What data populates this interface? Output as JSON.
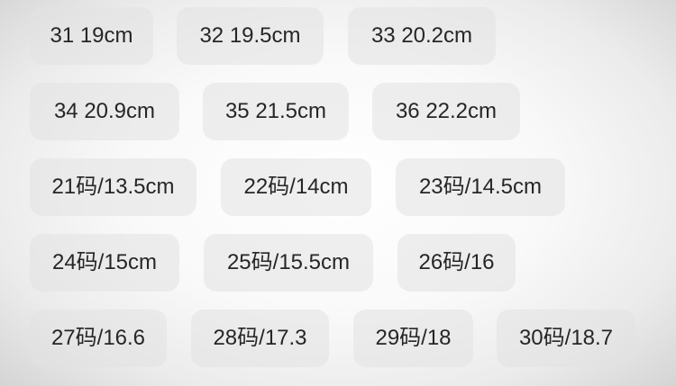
{
  "size_options": [
    "31 19cm",
    "32 19.5cm",
    "33 20.2cm",
    "34 20.9cm",
    "35 21.5cm",
    "36 22.2cm",
    "21码/13.5cm",
    "22码/14cm",
    "23码/14.5cm",
    "24码/15cm",
    "25码/15.5cm",
    "26码/16",
    "27码/16.6",
    "28码/17.3",
    "29码/18",
    "30码/18.7"
  ],
  "colors": {
    "chip_background": "#e2e2e2",
    "text": "#262626",
    "page_background": "#f9f9f9"
  }
}
